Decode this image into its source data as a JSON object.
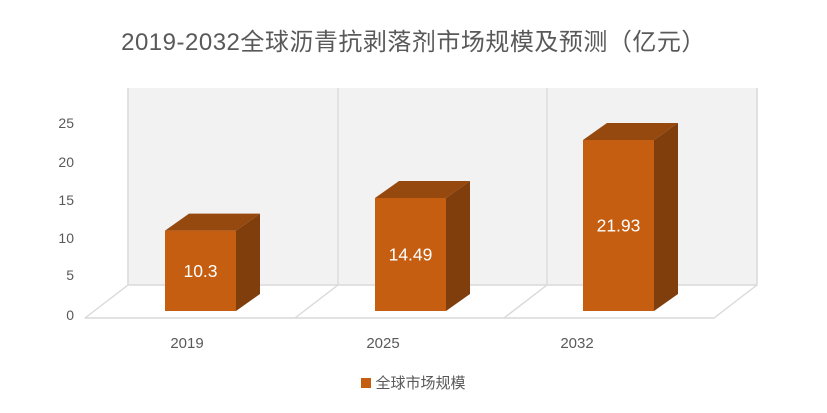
{
  "chart_data": {
    "type": "bar",
    "style": "3d-column",
    "title": "2019-2032全球沥青抗剥落剂市场规模及预测（亿元）",
    "categories": [
      "2019",
      "2025",
      "2032"
    ],
    "series": [
      {
        "name": "全球市场规模",
        "values": [
          10.3,
          14.49,
          21.93
        ]
      }
    ],
    "data_labels": [
      "10.3",
      "14.49",
      "21.93"
    ],
    "xlabel": "",
    "ylabel": "",
    "ylim": [
      0,
      25
    ],
    "ytick_step": 5,
    "yticks": [
      "0",
      "5",
      "10",
      "15",
      "20",
      "25"
    ],
    "grid": "vertical category separators only",
    "legend_position": "bottom-center",
    "colors": {
      "bar_front": "#C55E11",
      "bar_top": "#96490E",
      "bar_side": "#7F3E0C",
      "wall_fill": "#F2F2F2",
      "wall_line": "#D9D9D9",
      "floor_fill": "#FFFFFF",
      "text_gray": "#595959",
      "data_label_text": "#FFFFFF"
    }
  }
}
